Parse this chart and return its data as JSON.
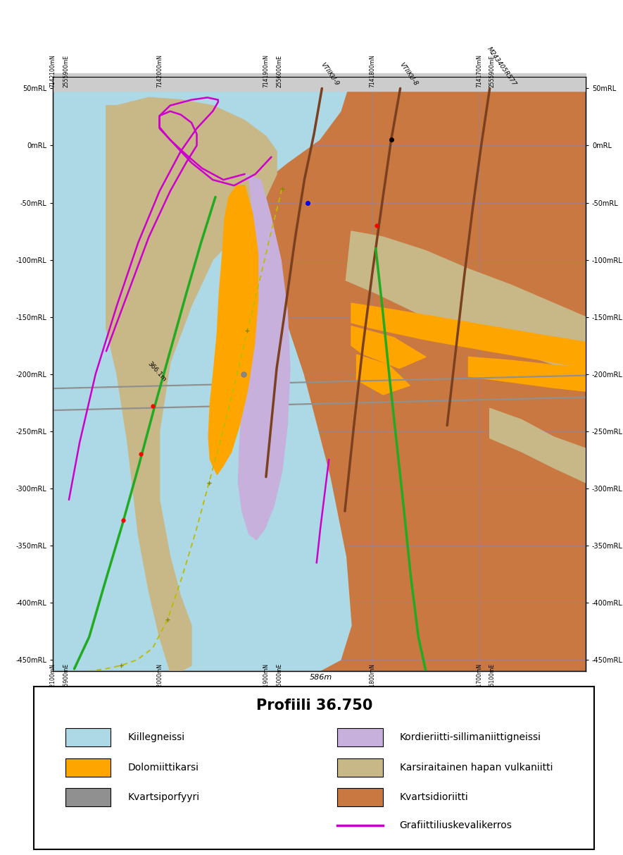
{
  "title": "Profiili 36.750",
  "colors": {
    "kiillegneissi": "#ADD8E6",
    "dolomiittikarsi": "#FFA500",
    "kvartsiporfyyri": "#909090",
    "kordieriitti": "#C8B0DC",
    "karsiraitainen": "#C8B887",
    "kvartsidioriitti": "#C87840",
    "grafiitti_line": "#CC00CC",
    "grid": "#8888BB",
    "drill_brown": "#7B4020",
    "drill_green": "#22AA22",
    "drill_yellow": "#CCCC00"
  },
  "legend_items": [
    {
      "label": "Kiillegneissi",
      "color": "#ADD8E6",
      "type": "patch"
    },
    {
      "label": "Dolomiittikarsi",
      "color": "#FFA500",
      "type": "patch"
    },
    {
      "label": "Kvartsiporfyyri",
      "color": "#909090",
      "type": "patch"
    },
    {
      "label": "Kordieriitti-sillimaniittigneissi",
      "color": "#C8B0DC",
      "type": "patch"
    },
    {
      "label": "Karsiraitainen hapan vulkaniitti",
      "color": "#C8B887",
      "type": "patch"
    },
    {
      "label": "Kvartsidioriitti",
      "color": "#C87840",
      "type": "patch"
    },
    {
      "label": "Grafiittiliuskevalikerros",
      "color": "#CC00CC",
      "type": "line"
    }
  ],
  "rl_values": [
    50,
    0,
    -50,
    -100,
    -150,
    -200,
    -250,
    -300,
    -350,
    -400,
    -450
  ],
  "drill_labels": [
    "VTIIKU-9",
    "VTIIKU-8",
    "M243405R577"
  ],
  "drill_label_366": "366.1m",
  "scale_label": "586m",
  "top_coords": [
    [
      "7142100mN",
      "2555900mE"
    ],
    [
      "7142000mN",
      ""
    ],
    [
      "7141900mN",
      "2556000mE"
    ],
    [
      "",
      ""
    ],
    [
      "7141800mN",
      ""
    ],
    [
      "",
      ""
    ],
    [
      "7141700mN",
      "2555900mE"
    ]
  ],
  "ymin": -460,
  "ymax": 60,
  "xmin": 0.0,
  "xmax": 1.0
}
